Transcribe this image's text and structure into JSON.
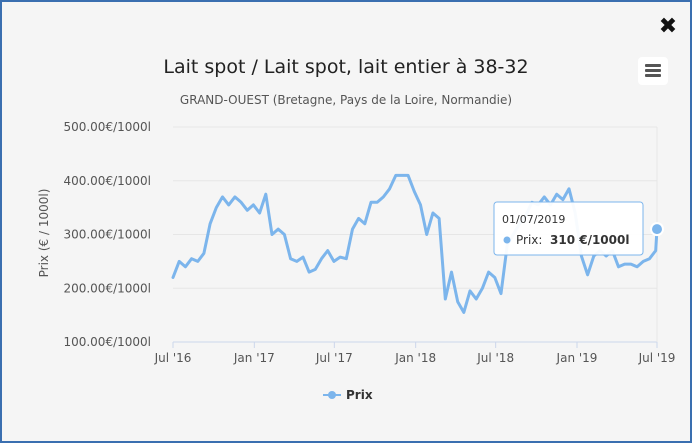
{
  "window": {
    "close_icon": "close-icon",
    "menu_icon": "hamburger-menu-icon"
  },
  "chart_data": {
    "type": "line",
    "title": "Lait spot / Lait spot, lait entier à 38-32",
    "subtitle": "GRAND-OUEST (Bretagne, Pays de la Loire, Normandie)",
    "ylabel": "Prix (€ / 1000l)",
    "xlabel": "",
    "ylim": [
      100,
      500
    ],
    "y_ticks": [
      100,
      200,
      300,
      400,
      500
    ],
    "y_tick_labels": [
      "100.00€/1000l",
      "200.00€/1000l",
      "300.00€/1000l",
      "400.00€/1000l",
      "500.00€/1000l"
    ],
    "x_ticks": [
      "2016-07-01",
      "2017-01-01",
      "2017-07-01",
      "2018-01-01",
      "2018-07-01",
      "2019-01-01",
      "2019-07-01"
    ],
    "x_tick_labels": [
      "Jul '16",
      "Jan '17",
      "Jul '17",
      "Jan '18",
      "Jul '18",
      "Jan '19",
      "Jul '19"
    ],
    "grid": true,
    "legend_position": "bottom-center",
    "series": [
      {
        "name": "Prix",
        "color": "#7cb5ec",
        "points": [
          [
            "2016-07-01",
            220
          ],
          [
            "2016-07-15",
            250
          ],
          [
            "2016-07-29",
            240
          ],
          [
            "2016-08-12",
            255
          ],
          [
            "2016-08-26",
            250
          ],
          [
            "2016-09-09",
            265
          ],
          [
            "2016-09-23",
            320
          ],
          [
            "2016-10-07",
            350
          ],
          [
            "2016-10-21",
            370
          ],
          [
            "2016-11-04",
            355
          ],
          [
            "2016-11-18",
            370
          ],
          [
            "2016-12-02",
            360
          ],
          [
            "2016-12-16",
            345
          ],
          [
            "2016-12-30",
            355
          ],
          [
            "2017-01-13",
            340
          ],
          [
            "2017-01-27",
            375
          ],
          [
            "2017-02-10",
            300
          ],
          [
            "2017-02-24",
            310
          ],
          [
            "2017-03-10",
            300
          ],
          [
            "2017-03-24",
            255
          ],
          [
            "2017-04-07",
            250
          ],
          [
            "2017-04-21",
            258
          ],
          [
            "2017-05-05",
            230
          ],
          [
            "2017-05-19",
            235
          ],
          [
            "2017-06-02",
            255
          ],
          [
            "2017-06-16",
            270
          ],
          [
            "2017-06-30",
            250
          ],
          [
            "2017-07-14",
            258
          ],
          [
            "2017-07-28",
            255
          ],
          [
            "2017-08-11",
            310
          ],
          [
            "2017-08-25",
            330
          ],
          [
            "2017-09-08",
            320
          ],
          [
            "2017-09-22",
            360
          ],
          [
            "2017-10-06",
            360
          ],
          [
            "2017-10-20",
            370
          ],
          [
            "2017-11-03",
            385
          ],
          [
            "2017-11-17",
            410
          ],
          [
            "2017-12-01",
            410
          ],
          [
            "2017-12-15",
            410
          ],
          [
            "2017-12-29",
            380
          ],
          [
            "2018-01-12",
            355
          ],
          [
            "2018-01-26",
            300
          ],
          [
            "2018-02-09",
            340
          ],
          [
            "2018-02-23",
            330
          ],
          [
            "2018-03-09",
            180
          ],
          [
            "2018-03-23",
            230
          ],
          [
            "2018-04-06",
            175
          ],
          [
            "2018-04-20",
            155
          ],
          [
            "2018-05-04",
            195
          ],
          [
            "2018-05-18",
            180
          ],
          [
            "2018-06-01",
            200
          ],
          [
            "2018-06-15",
            230
          ],
          [
            "2018-06-29",
            220
          ],
          [
            "2018-07-13",
            190
          ],
          [
            "2018-07-27",
            280
          ],
          [
            "2018-08-10",
            300
          ],
          [
            "2018-08-24",
            320
          ],
          [
            "2018-09-07",
            335
          ],
          [
            "2018-09-21",
            360
          ],
          [
            "2018-10-05",
            355
          ],
          [
            "2018-10-19",
            370
          ],
          [
            "2018-11-02",
            355
          ],
          [
            "2018-11-16",
            375
          ],
          [
            "2018-11-30",
            365
          ],
          [
            "2018-12-14",
            385
          ],
          [
            "2018-12-28",
            340
          ],
          [
            "2019-01-11",
            260
          ],
          [
            "2019-01-25",
            225
          ],
          [
            "2019-02-08",
            260
          ],
          [
            "2019-02-22",
            270
          ],
          [
            "2019-03-08",
            260
          ],
          [
            "2019-03-22",
            270
          ],
          [
            "2019-04-05",
            240
          ],
          [
            "2019-04-19",
            245
          ],
          [
            "2019-05-03",
            245
          ],
          [
            "2019-05-17",
            240
          ],
          [
            "2019-05-31",
            250
          ],
          [
            "2019-06-14",
            255
          ],
          [
            "2019-06-28",
            270
          ],
          [
            "2019-07-01",
            310
          ]
        ]
      }
    ],
    "tooltip": {
      "date": "01/07/2019",
      "series_label": "Prix:",
      "value_label": "310 €/1000l"
    },
    "legend": [
      {
        "label": "Prix",
        "color": "#7cb5ec"
      }
    ]
  }
}
